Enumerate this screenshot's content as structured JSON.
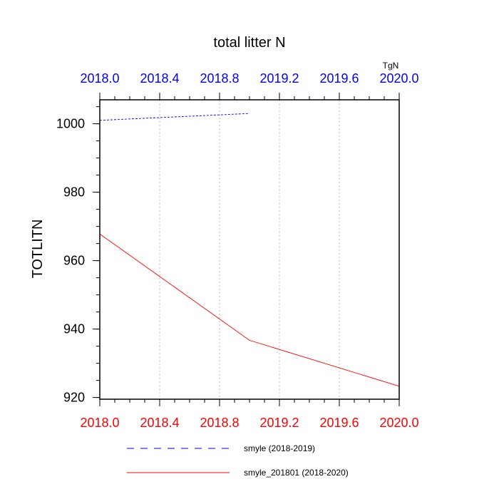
{
  "chart_data": {
    "type": "line",
    "title": "total litter N",
    "ylabel": "TOTLITN",
    "units": "TgN",
    "xlim": [
      2018.0,
      2020.0
    ],
    "ylim": [
      919.5,
      1007
    ],
    "x_ticks": [
      2018.0,
      2018.4,
      2018.8,
      2019.2,
      2019.6,
      2020.0
    ],
    "x_tick_labels": [
      "2018.0",
      "2018.4",
      "2018.8",
      "2019.2",
      "2019.6",
      "2020.0"
    ],
    "y_ticks": [
      920,
      940,
      960,
      980,
      1000
    ],
    "y_tick_labels": [
      "920",
      "940",
      "960",
      "980",
      "1000"
    ],
    "grid": "vertical-dotted",
    "legend_position": "bottom",
    "top_axis_color": "#0000ff",
    "bottom_axis_color": "#ff0000",
    "series": [
      {
        "name": "smyle (2018-2019)",
        "color": "#0000ff",
        "dash": "dashed",
        "points": [
          [
            2018.0,
            1001.0
          ],
          [
            2019.0,
            1003.0
          ]
        ]
      },
      {
        "name": "smyle_201801 (2018-2020)",
        "color": "#ff0000",
        "dash": "solid",
        "points": [
          [
            2018.0,
            967.8
          ],
          [
            2019.0,
            936.7
          ],
          [
            2020.0,
            923.3
          ]
        ]
      }
    ]
  }
}
